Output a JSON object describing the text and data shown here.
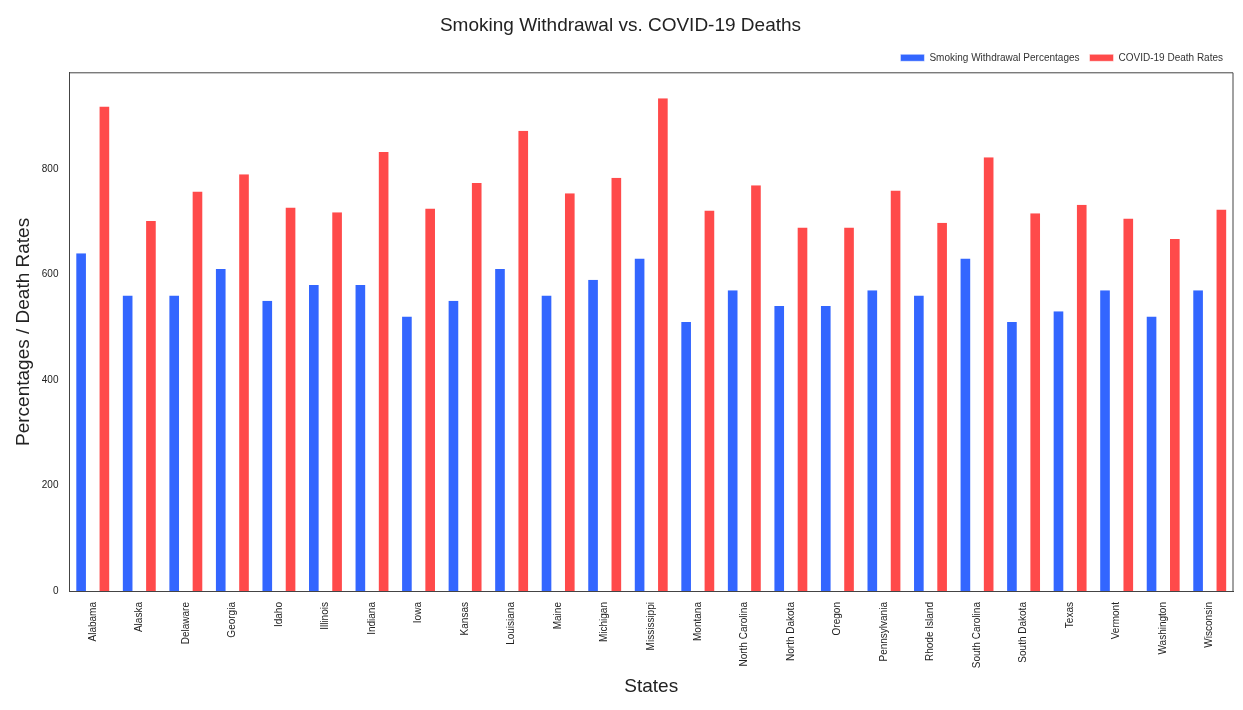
{
  "chart_data": {
    "type": "bar",
    "title": "Smoking Withdrawal vs. COVID-19 Deaths",
    "xlabel": "States",
    "ylabel": "Percentages / Death Rates",
    "categories": [
      "Alabama",
      "Alaska",
      "Delaware",
      "Georgia",
      "Idaho",
      "Illinois",
      "Indiana",
      "Iowa",
      "Kansas",
      "Louisiana",
      "Maine",
      "Michigan",
      "Mississippi",
      "Montana",
      "North Carolina",
      "North Dakota",
      "Oregon",
      "Pennsylvania",
      "Rhode Island",
      "South Carolina",
      "South Dakota",
      "Texas",
      "Vermont",
      "Washington",
      "Wisconsin"
    ],
    "series": [
      {
        "name": "Smoking Withdrawal Percentages",
        "color": "#3366ff",
        "values": [
          640,
          560,
          560,
          610,
          550,
          580,
          580,
          520,
          550,
          610,
          560,
          590,
          630,
          510,
          570,
          540,
          540,
          570,
          560,
          630,
          510,
          530,
          570,
          520,
          570
        ]
      },
      {
        "name": "COVID-19 Death Rates",
        "color": "#ff4a4a",
        "values": [
          918,
          701,
          757,
          790,
          727,
          718,
          832,
          725,
          773,
          872,
          754,
          783,
          934,
          721,
          769,
          689,
          689,
          759,
          698,
          822,
          716,
          732,
          706,
          667,
          723
        ]
      }
    ],
    "ylim": [
      0,
      982
    ],
    "yticks": [
      0,
      200,
      400,
      600,
      800
    ],
    "grid": false,
    "legend": "top right"
  }
}
